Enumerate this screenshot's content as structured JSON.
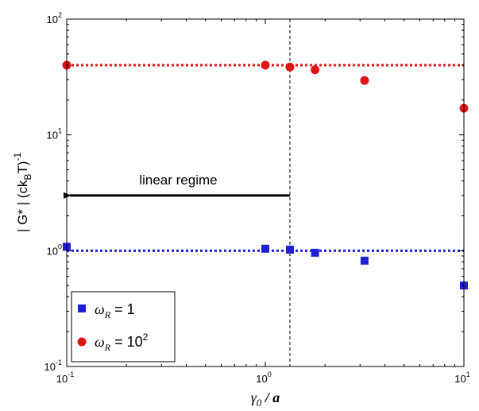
{
  "chart_data": {
    "type": "scatter",
    "xscale": "log",
    "yscale": "log",
    "xlim": [
      0.1,
      10
    ],
    "ylim": [
      0.1,
      100
    ],
    "xticks": [
      0.1,
      1,
      10
    ],
    "yticks": [
      0.1,
      1,
      10,
      100
    ],
    "xtick_labels": [
      {
        "base": "10",
        "exp": "-1"
      },
      {
        "base": "10",
        "exp": "0"
      },
      {
        "base": "10",
        "exp": "1"
      }
    ],
    "ytick_labels": [
      {
        "base": "10",
        "exp": "-1"
      },
      {
        "base": "10",
        "exp": "0"
      },
      {
        "base": "10",
        "exp": "1"
      },
      {
        "base": "10",
        "exp": "2"
      }
    ],
    "xlabel": {
      "text": "γ0 / a",
      "parts": [
        "γ",
        "0",
        " / a"
      ]
    },
    "ylabel": {
      "text": "| G* | (ckBT)-1",
      "parts": [
        "| G* | (ck",
        "B",
        "T)",
        "-1"
      ]
    },
    "grid": false,
    "legend_position": "bottom-left",
    "series": [
      {
        "name": "ωR = 1",
        "name_parts": [
          "ω",
          "R",
          " = 1"
        ],
        "marker": "square",
        "color": "#1f1fd6",
        "x": [
          0.1,
          1.0,
          1.33,
          1.78,
          3.16,
          10.0
        ],
        "y": [
          1.08,
          1.04,
          1.02,
          0.96,
          0.82,
          0.5
        ]
      },
      {
        "name": "ωR = 10^2",
        "name_parts": [
          "ω",
          "R",
          " = 10",
          "2"
        ],
        "marker": "circle",
        "color": "#e01414",
        "x": [
          0.1,
          1.0,
          1.33,
          1.78,
          3.16,
          10.0
        ],
        "y": [
          40,
          40,
          38.5,
          36.5,
          29.5,
          17
        ]
      }
    ],
    "reference_lines": [
      {
        "orientation": "horizontal",
        "y": 40,
        "style": "dotted",
        "color": "#e01414"
      },
      {
        "orientation": "horizontal",
        "y": 1.0,
        "style": "dotted",
        "color": "#1f1fd6"
      },
      {
        "orientation": "vertical",
        "x": 1.33,
        "style": "dashed",
        "color": "#000000"
      }
    ],
    "annotations": [
      {
        "text": "linear regime",
        "arrow": {
          "x_from": 1.33,
          "x_to": 0.1,
          "y": 3.0
        }
      }
    ]
  }
}
